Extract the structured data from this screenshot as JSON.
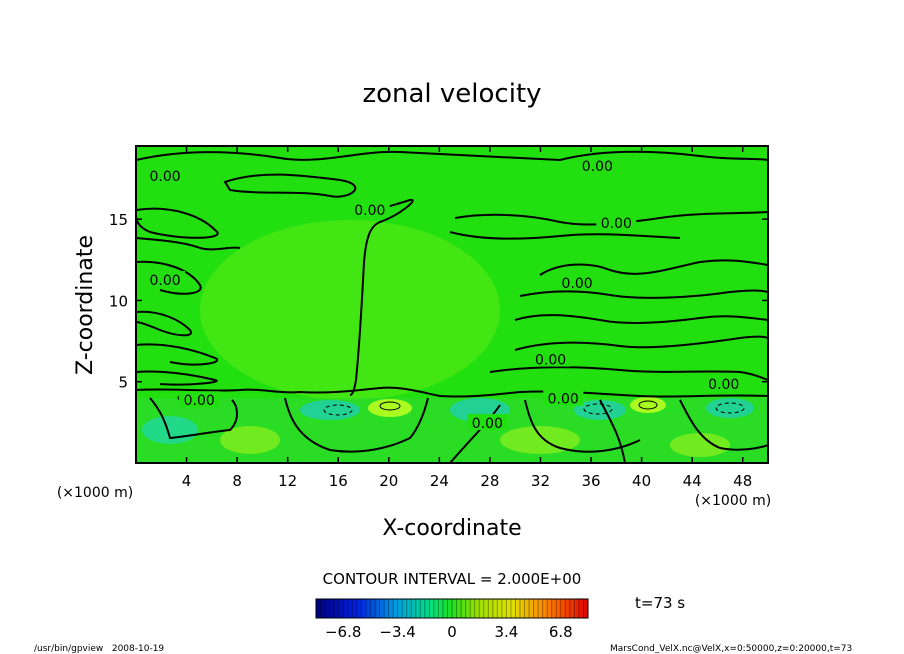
{
  "chart_data": {
    "type": "heatmap",
    "title": "zonal velocity",
    "xlabel": "X-coordinate",
    "ylabel": "Z-coordinate",
    "x_unit_left": "(×1000 m)",
    "x_unit_right": "(×1000 m)",
    "xlim": [
      0,
      50
    ],
    "ylim": [
      0,
      19.5
    ],
    "x_ticks": [
      4,
      8,
      12,
      16,
      20,
      24,
      28,
      32,
      36,
      40,
      44,
      48
    ],
    "y_ticks": [
      5,
      10,
      15
    ],
    "contour_interval_text": "CONTOUR INTERVAL = 2.000E+00",
    "contour_labels": [
      {
        "text": "0.00",
        "x": 2.3,
        "y": 17.6
      },
      {
        "text": "0.00",
        "x": 18.5,
        "y": 15.5
      },
      {
        "text": "0.00",
        "x": 36.5,
        "y": 18.2
      },
      {
        "text": "0.00",
        "x": 38.0,
        "y": 14.7
      },
      {
        "text": "0.00",
        "x": 2.3,
        "y": 11.2
      },
      {
        "text": "0.00",
        "x": 34.9,
        "y": 11.0
      },
      {
        "text": "0.00",
        "x": 32.8,
        "y": 6.3
      },
      {
        "text": "0.00",
        "x": 46.5,
        "y": 4.8
      },
      {
        "text": "0.00",
        "x": 5.0,
        "y": 3.8
      },
      {
        "text": "0.00",
        "x": 33.8,
        "y": 3.9
      },
      {
        "text": "0.00",
        "x": 27.8,
        "y": 2.4
      }
    ],
    "colorbar": {
      "tick_labels": [
        "−6.8",
        "−3.4",
        "0",
        "3.4",
        "6.8"
      ],
      "tick_values": [
        -6.8,
        -3.4,
        0,
        3.4,
        6.8
      ],
      "range": [
        -8.5,
        8.5
      ]
    },
    "time_label": "t=73 s",
    "colors": {
      "field_base": "#22e010",
      "field_pos": "#b8ff20",
      "field_neg": "#20d890",
      "contour": "#000000"
    }
  },
  "footer": {
    "left": "/usr/bin/gpview   2008-10-19",
    "right": "MarsCond_VelX.nc@VelX,x=0:50000,z=0:20000,t=73"
  }
}
